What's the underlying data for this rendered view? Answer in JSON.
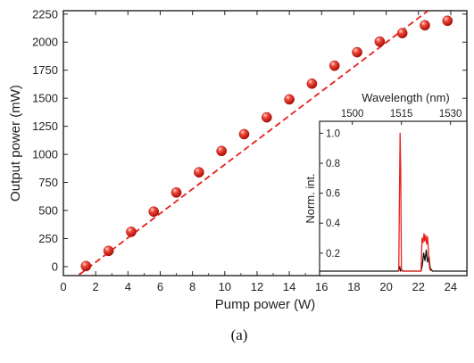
{
  "chart_data": [
    {
      "type": "scatter",
      "xlabel": "Pump power (W)",
      "ylabel": "Output power (mW)",
      "xlim": [
        0,
        25
      ],
      "ylim": [
        -80,
        2280
      ],
      "xticks": [
        0,
        2,
        4,
        6,
        8,
        10,
        12,
        14,
        16,
        18,
        20,
        22,
        24
      ],
      "yticks": [
        0,
        250,
        500,
        750,
        1000,
        1250,
        1500,
        1750,
        2000,
        2250
      ],
      "grid": false,
      "series": [
        {
          "style": "markers",
          "color": "#e8201a",
          "x": [
            1.4,
            2.8,
            4.2,
            5.6,
            7.0,
            8.4,
            9.8,
            11.2,
            12.6,
            14.0,
            15.4,
            16.8,
            18.2,
            19.6,
            21.0,
            22.4,
            23.8
          ],
          "y": [
            5,
            140,
            310,
            490,
            660,
            840,
            1030,
            1180,
            1330,
            1490,
            1630,
            1790,
            1910,
            2005,
            2080,
            2150,
            2190
          ]
        },
        {
          "style": "dashed-line",
          "color": "#e8201a",
          "x": [
            1.0,
            22.6
          ],
          "y": [
            -70,
            2280
          ]
        }
      ]
    },
    {
      "type": "line",
      "inset": true,
      "position": "bottom-right",
      "xlabel": "Wavelength (nm)",
      "ylabel": "Norm. int.",
      "xlim": [
        1490,
        1535
      ],
      "ylim": [
        0.05,
        1.08
      ],
      "xticks": [
        1500,
        1515,
        1530
      ],
      "yticks": [
        0.2,
        0.4,
        0.6,
        0.8,
        1.0
      ],
      "series": [
        {
          "color": "#111111",
          "x": [
            1490,
            1514.0,
            1514.5,
            1514.7,
            1515.0,
            1515.5,
            1521.0,
            1521.4,
            1521.8,
            1522.2,
            1522.6,
            1523.0,
            1523.4,
            1523.8,
            1524.5,
            1535
          ],
          "y": [
            0.08,
            0.08,
            0.11,
            0.08,
            0.09,
            0.08,
            0.08,
            0.12,
            0.2,
            0.15,
            0.22,
            0.14,
            0.18,
            0.1,
            0.08,
            0.08
          ]
        },
        {
          "color": "#e8201a",
          "x": [
            1513.8,
            1514.2,
            1514.4,
            1514.6,
            1514.8,
            1515.0,
            1515.3,
            1521.0,
            1521.3,
            1521.6,
            1521.9,
            1522.1,
            1522.4,
            1522.7,
            1523.0,
            1523.3,
            1523.6,
            1524.0
          ],
          "y": [
            0.08,
            0.08,
            0.6,
            1.0,
            0.75,
            0.09,
            0.08,
            0.08,
            0.3,
            0.27,
            0.33,
            0.28,
            0.32,
            0.26,
            0.31,
            0.2,
            0.1,
            0.08
          ]
        }
      ]
    }
  ],
  "caption": "(a)"
}
